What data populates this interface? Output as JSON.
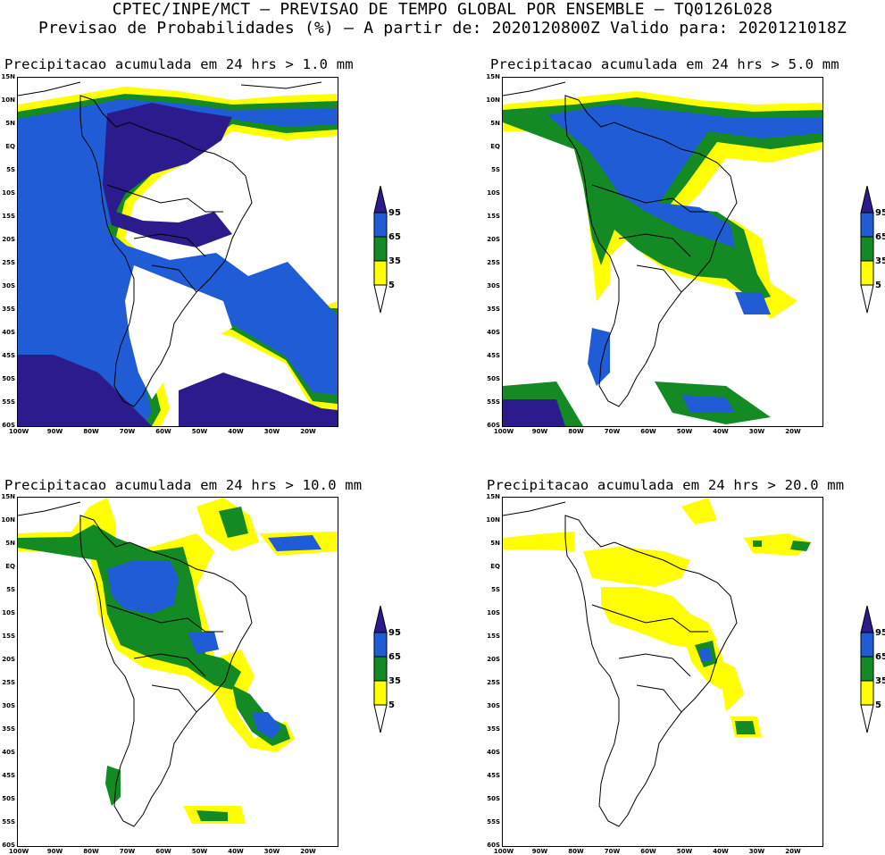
{
  "header": {
    "line1": "CPTEC/INPE/MCT — PREVISAO DE TEMPO GLOBAL POR ENSEMBLE — TQ0126L028",
    "line2": "Previsao de Probabilidades (%) —  A partir de: 2020120800Z  Valido para: 2020121018Z"
  },
  "axes": {
    "lat_labels": [
      "15N",
      "10N",
      "5N",
      "EQ",
      "5S",
      "10S",
      "15S",
      "20S",
      "25S",
      "30S",
      "35S",
      "40S",
      "45S",
      "50S",
      "55S",
      "60S"
    ],
    "lon_labels": [
      "100W",
      "90W",
      "80W",
      "70W",
      "60W",
      "50W",
      "40W",
      "30W",
      "20W"
    ]
  },
  "legend": {
    "levels": [
      "95",
      "65",
      "35",
      "5"
    ],
    "colors": {
      "c95": "#2b1b8c",
      "c65": "#1f5cd6",
      "c35": "#138a24",
      "c5": "#ffff00"
    }
  },
  "panels": [
    {
      "title": "Precipitacao acumulada em 24 hrs > 1.0 mm"
    },
    {
      "title": "Precipitacao acumulada em 24 hrs > 5.0 mm"
    },
    {
      "title": "Precipitacao acumulada em 24 hrs > 10.0 mm"
    },
    {
      "title": "Precipitacao acumulada em 24 hrs > 20.0 mm"
    }
  ]
}
